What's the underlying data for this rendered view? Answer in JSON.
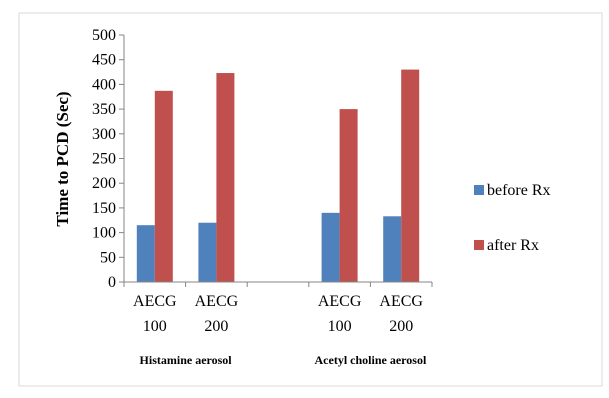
{
  "chart_data": {
    "type": "bar",
    "title": "",
    "xlabel": "",
    "ylabel": "Time to PCD (Sec)",
    "ylim": [
      0,
      500
    ],
    "yticks": [
      0,
      50,
      100,
      150,
      200,
      250,
      300,
      350,
      400,
      450,
      500
    ],
    "grid": false,
    "legend_position": "right",
    "groups": [
      {
        "label": "Histamine aerosol",
        "categories": [
          "AECG 100",
          "AECG 200"
        ]
      },
      {
        "label": "Acetyl choline aerosol",
        "categories": [
          "AECG 100",
          "AECG 200"
        ]
      }
    ],
    "categories": [
      {
        "line1": "AECG",
        "line2": "100"
      },
      {
        "line1": "AECG",
        "line2": "200"
      },
      {
        "line1": "AECG",
        "line2": "100"
      },
      {
        "line1": "AECG",
        "line2": "200"
      }
    ],
    "series": [
      {
        "name": "before Rx",
        "color": "#4f81bd",
        "values": [
          115,
          120,
          140,
          133
        ]
      },
      {
        "name": "after Rx",
        "color": "#c0504d",
        "values": [
          387,
          423,
          350,
          430
        ]
      }
    ]
  }
}
